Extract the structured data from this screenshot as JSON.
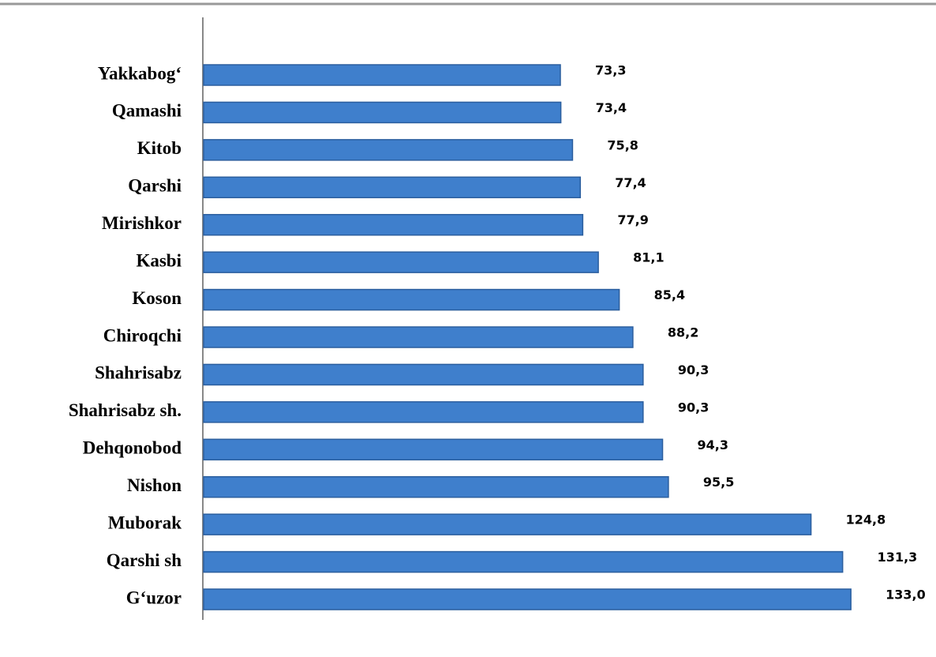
{
  "chart_data": {
    "type": "bar",
    "orientation": "horizontal",
    "categories": [
      "Yakkabog‘",
      "Qamashi",
      "Kitob",
      "Qarshi",
      "Mirishkor",
      "Kasbi",
      "Koson",
      "Chiroqchi",
      "Shahrisabz",
      "Shahrisabz sh.",
      "Dehqonobod",
      "Nishon",
      "Muborak",
      "Qarshi sh",
      "G‘uzor"
    ],
    "values": [
      73.3,
      73.4,
      75.8,
      77.4,
      77.9,
      81.1,
      85.4,
      88.2,
      90.3,
      90.3,
      94.3,
      95.5,
      124.8,
      131.3,
      133.0
    ],
    "value_labels": [
      "73,3",
      "73,4",
      "75,8",
      "77,4",
      "77,9",
      "81,1",
      "85,4",
      "88,2",
      "90,3",
      "90,3",
      "94,3",
      "95,5",
      "124,8",
      "131,3",
      "133,0"
    ],
    "color": "#3f7fcc",
    "xlim": [
      0,
      150
    ]
  }
}
